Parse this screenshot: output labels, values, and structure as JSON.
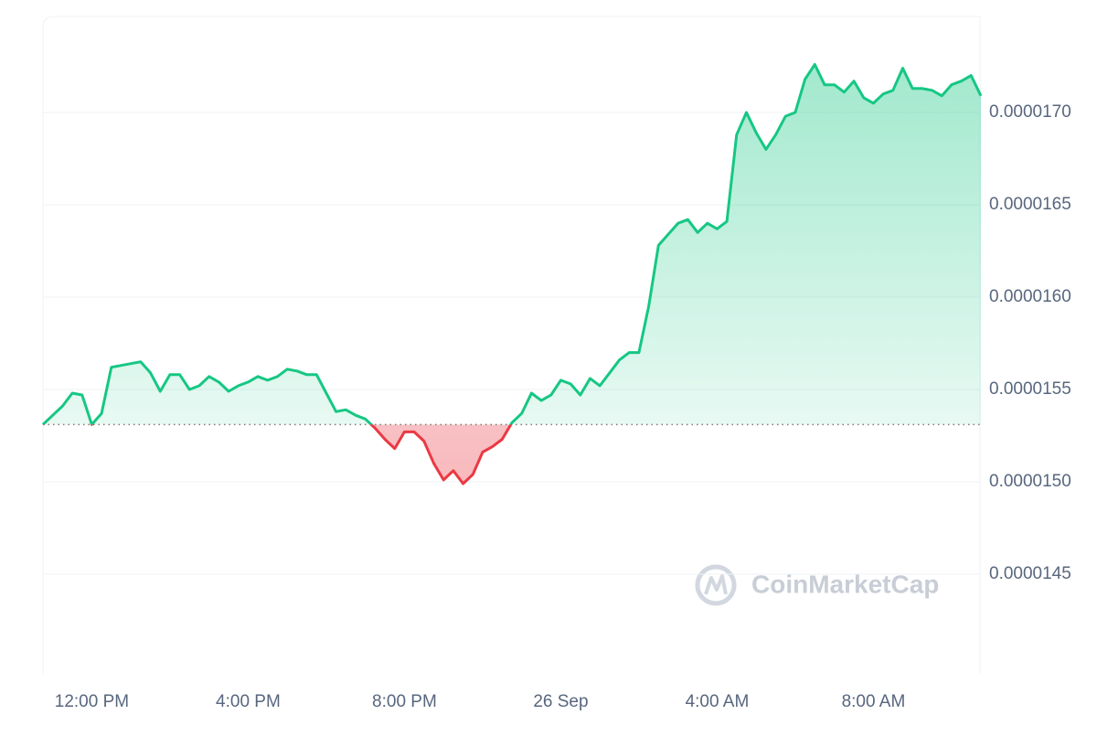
{
  "chart_data": {
    "type": "line",
    "categories": [
      null,
      null,
      null,
      null,
      null,
      "12:00 PM",
      null,
      null,
      null,
      null,
      null,
      null,
      null,
      null,
      null,
      null,
      null,
      null,
      null,
      null,
      null,
      "4:00 PM",
      null,
      null,
      null,
      null,
      null,
      null,
      null,
      null,
      null,
      null,
      null,
      null,
      null,
      null,
      null,
      "8:00 PM",
      null,
      null,
      null,
      null,
      null,
      null,
      null,
      null,
      null,
      null,
      null,
      null,
      null,
      null,
      null,
      "26 Sep",
      null,
      null,
      null,
      null,
      null,
      null,
      null,
      null,
      null,
      null,
      null,
      null,
      null,
      null,
      null,
      "4:00 AM",
      null,
      null,
      null,
      null,
      null,
      null,
      null,
      null,
      null,
      null,
      null,
      null,
      null,
      null,
      null,
      "8:00 AM",
      null,
      null,
      null,
      null,
      null,
      null,
      null,
      null,
      null,
      null,
      null
    ],
    "values": [
      1.531e-05,
      1.536e-05,
      1.541e-05,
      1.548e-05,
      1.547e-05,
      1.531e-05,
      1.537e-05,
      1.562e-05,
      1.563e-05,
      1.564e-05,
      1.565e-05,
      1.559e-05,
      1.549e-05,
      1.558e-05,
      1.558e-05,
      1.55e-05,
      1.552e-05,
      1.557e-05,
      1.554e-05,
      1.549e-05,
      1.552e-05,
      1.554e-05,
      1.557e-05,
      1.555e-05,
      1.557e-05,
      1.561e-05,
      1.56e-05,
      1.558e-05,
      1.558e-05,
      1.548e-05,
      1.538e-05,
      1.539e-05,
      1.536e-05,
      1.534e-05,
      1.529e-05,
      1.523e-05,
      1.518e-05,
      1.527e-05,
      1.527e-05,
      1.522e-05,
      1.51e-05,
      1.501e-05,
      1.506e-05,
      1.499e-05,
      1.504e-05,
      1.516e-05,
      1.519e-05,
      1.523e-05,
      1.532e-05,
      1.537e-05,
      1.548e-05,
      1.544e-05,
      1.547e-05,
      1.555e-05,
      1.553e-05,
      1.547e-05,
      1.556e-05,
      1.552e-05,
      1.559e-05,
      1.566e-05,
      1.57e-05,
      1.57e-05,
      1.595e-05,
      1.628e-05,
      1.634e-05,
      1.64e-05,
      1.642e-05,
      1.635e-05,
      1.64e-05,
      1.637e-05,
      1.641e-05,
      1.688e-05,
      1.7e-05,
      1.689e-05,
      1.68e-05,
      1.688e-05,
      1.698e-05,
      1.7e-05,
      1.718e-05,
      1.726e-05,
      1.715e-05,
      1.715e-05,
      1.711e-05,
      1.717e-05,
      1.708e-05,
      1.705e-05,
      1.71e-05,
      1.712e-05,
      1.724e-05,
      1.713e-05,
      1.713e-05,
      1.712e-05,
      1.709e-05,
      1.715e-05,
      1.717e-05,
      1.72e-05,
      1.709e-05
    ],
    "baseline": 1.531e-05,
    "up_color": "#16c784",
    "down_color": "#ea3943",
    "ylim": [
      1.396e-05,
      1.752e-05
    ],
    "yticks": [
      {
        "value": 1.45e-05,
        "label": "0.0000145"
      },
      {
        "value": 1.5e-05,
        "label": "0.0000150"
      },
      {
        "value": 1.55e-05,
        "label": "0.0000155"
      },
      {
        "value": 1.6e-05,
        "label": "0.0000160"
      },
      {
        "value": 1.65e-05,
        "label": "0.0000165"
      },
      {
        "value": 1.7e-05,
        "label": "0.0000170"
      }
    ],
    "grid": true,
    "watermark": "CoinMarketCap"
  }
}
